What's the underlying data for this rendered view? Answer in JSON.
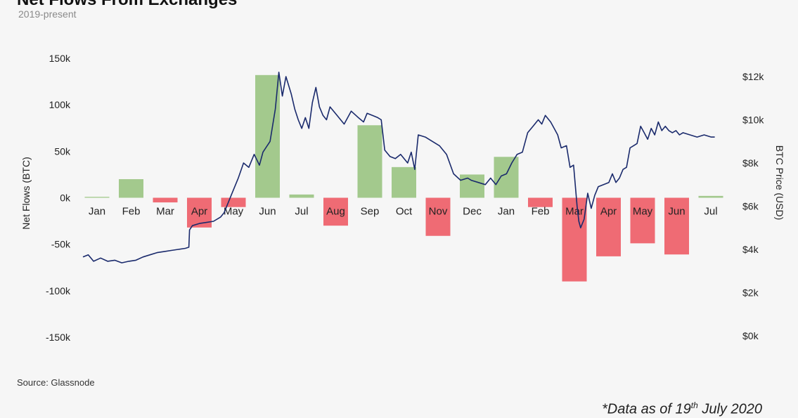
{
  "title": "Net Flows From Exchanges",
  "subtitle": "2019-present",
  "source": "Source: Glassnode",
  "footnote": {
    "prefix": "*Data as of 19",
    "sup": "th",
    "suffix": " July 2020"
  },
  "colors": {
    "inflow_bar": "#a3c98d",
    "outflow_bar": "#ef6b74",
    "price_line": "#1a2a6c",
    "background": "#f6f6f6"
  },
  "chart_data": {
    "type": "bar",
    "ylabel": "Net Flows (BTC)",
    "y2label": "BTC Price (USD)",
    "ylim": [
      -150000,
      150000
    ],
    "y2lim": [
      0,
      12000
    ],
    "y_ticks": [
      "150k",
      "100k",
      "50k",
      "0k",
      "-50k",
      "-100k",
      "-150k"
    ],
    "y2_ticks": [
      "$12k",
      "$10k",
      "$8k",
      "$6k",
      "$4k",
      "$2k",
      "$0k"
    ],
    "grid": false,
    "categories": [
      "Jan",
      "Feb",
      "Mar",
      "Apr",
      "May",
      "Jun",
      "Jul",
      "Aug",
      "Sep",
      "Oct",
      "Nov",
      "Dec",
      "Jan",
      "Feb",
      "Mar",
      "Apr",
      "May",
      "Jun",
      "Jul"
    ],
    "series": [
      {
        "type": "bar",
        "values": [
          1000,
          20000,
          -5000,
          -32000,
          -10000,
          132000,
          3500,
          -30000,
          78000,
          33000,
          -41000,
          25000,
          44000,
          -10000,
          -90000,
          -63000,
          -49000,
          -61000,
          2000
        ]
      },
      {
        "type": "line",
        "points": [
          [
            0.0,
            3650
          ],
          [
            0.15,
            3750
          ],
          [
            0.3,
            3450
          ],
          [
            0.5,
            3600
          ],
          [
            0.7,
            3450
          ],
          [
            0.9,
            3500
          ],
          [
            1.1,
            3380
          ],
          [
            1.3,
            3450
          ],
          [
            1.5,
            3500
          ],
          [
            1.7,
            3650
          ],
          [
            1.9,
            3750
          ],
          [
            2.1,
            3850
          ],
          [
            2.3,
            3900
          ],
          [
            2.5,
            3950
          ],
          [
            2.7,
            4000
          ],
          [
            2.9,
            4050
          ],
          [
            3.0,
            4100
          ],
          [
            3.02,
            4900
          ],
          [
            3.1,
            5100
          ],
          [
            3.3,
            5200
          ],
          [
            3.5,
            5250
          ],
          [
            3.7,
            5300
          ],
          [
            3.9,
            5500
          ],
          [
            4.0,
            5700
          ],
          [
            4.2,
            6500
          ],
          [
            4.4,
            7300
          ],
          [
            4.55,
            8000
          ],
          [
            4.7,
            7800
          ],
          [
            4.85,
            8400
          ],
          [
            5.0,
            7900
          ],
          [
            5.1,
            8500
          ],
          [
            5.3,
            9000
          ],
          [
            5.45,
            10500
          ],
          [
            5.55,
            12200
          ],
          [
            5.65,
            11100
          ],
          [
            5.75,
            12000
          ],
          [
            5.9,
            11200
          ],
          [
            6.0,
            10500
          ],
          [
            6.1,
            10000
          ],
          [
            6.2,
            9600
          ],
          [
            6.3,
            10100
          ],
          [
            6.4,
            9600
          ],
          [
            6.5,
            10800
          ],
          [
            6.6,
            11500
          ],
          [
            6.7,
            10600
          ],
          [
            6.8,
            10200
          ],
          [
            6.9,
            10000
          ],
          [
            7.0,
            10600
          ],
          [
            7.2,
            10200
          ],
          [
            7.4,
            9800
          ],
          [
            7.6,
            10400
          ],
          [
            7.8,
            10100
          ],
          [
            7.95,
            9900
          ],
          [
            8.05,
            10300
          ],
          [
            8.2,
            10200
          ],
          [
            8.35,
            10100
          ],
          [
            8.45,
            10000
          ],
          [
            8.55,
            8600
          ],
          [
            8.7,
            8300
          ],
          [
            8.85,
            8200
          ],
          [
            9.0,
            8400
          ],
          [
            9.2,
            8000
          ],
          [
            9.3,
            8500
          ],
          [
            9.4,
            7700
          ],
          [
            9.5,
            9300
          ],
          [
            9.7,
            9200
          ],
          [
            9.9,
            9000
          ],
          [
            10.1,
            8800
          ],
          [
            10.3,
            8400
          ],
          [
            10.5,
            7500
          ],
          [
            10.7,
            7200
          ],
          [
            10.9,
            7300
          ],
          [
            11.0,
            7200
          ],
          [
            11.2,
            7100
          ],
          [
            11.4,
            7000
          ],
          [
            11.55,
            7300
          ],
          [
            11.7,
            7000
          ],
          [
            11.85,
            7400
          ],
          [
            12.0,
            7500
          ],
          [
            12.15,
            8000
          ],
          [
            12.3,
            8400
          ],
          [
            12.45,
            8500
          ],
          [
            12.6,
            9400
          ],
          [
            12.75,
            9700
          ],
          [
            12.9,
            10000
          ],
          [
            13.0,
            9800
          ],
          [
            13.1,
            10200
          ],
          [
            13.25,
            9900
          ],
          [
            13.35,
            9600
          ],
          [
            13.45,
            9300
          ],
          [
            13.55,
            8700
          ],
          [
            13.7,
            8800
          ],
          [
            13.8,
            7800
          ],
          [
            13.9,
            7900
          ],
          [
            14.0,
            6000
          ],
          [
            14.05,
            5300
          ],
          [
            14.1,
            5000
          ],
          [
            14.2,
            5400
          ],
          [
            14.3,
            6600
          ],
          [
            14.4,
            5900
          ],
          [
            14.5,
            6500
          ],
          [
            14.6,
            6900
          ],
          [
            14.75,
            7000
          ],
          [
            14.9,
            7100
          ],
          [
            15.0,
            7500
          ],
          [
            15.1,
            7100
          ],
          [
            15.2,
            7300
          ],
          [
            15.3,
            7700
          ],
          [
            15.4,
            7800
          ],
          [
            15.5,
            8700
          ],
          [
            15.6,
            8800
          ],
          [
            15.7,
            8900
          ],
          [
            15.8,
            9700
          ],
          [
            15.9,
            9400
          ],
          [
            16.0,
            9100
          ],
          [
            16.1,
            9600
          ],
          [
            16.2,
            9300
          ],
          [
            16.3,
            9900
          ],
          [
            16.4,
            9500
          ],
          [
            16.5,
            9700
          ],
          [
            16.6,
            9500
          ],
          [
            16.7,
            9400
          ],
          [
            16.8,
            9500
          ],
          [
            16.9,
            9300
          ],
          [
            17.0,
            9400
          ],
          [
            17.2,
            9300
          ],
          [
            17.4,
            9200
          ],
          [
            17.6,
            9300
          ],
          [
            17.8,
            9200
          ],
          [
            17.9,
            9200
          ]
        ]
      }
    ]
  }
}
